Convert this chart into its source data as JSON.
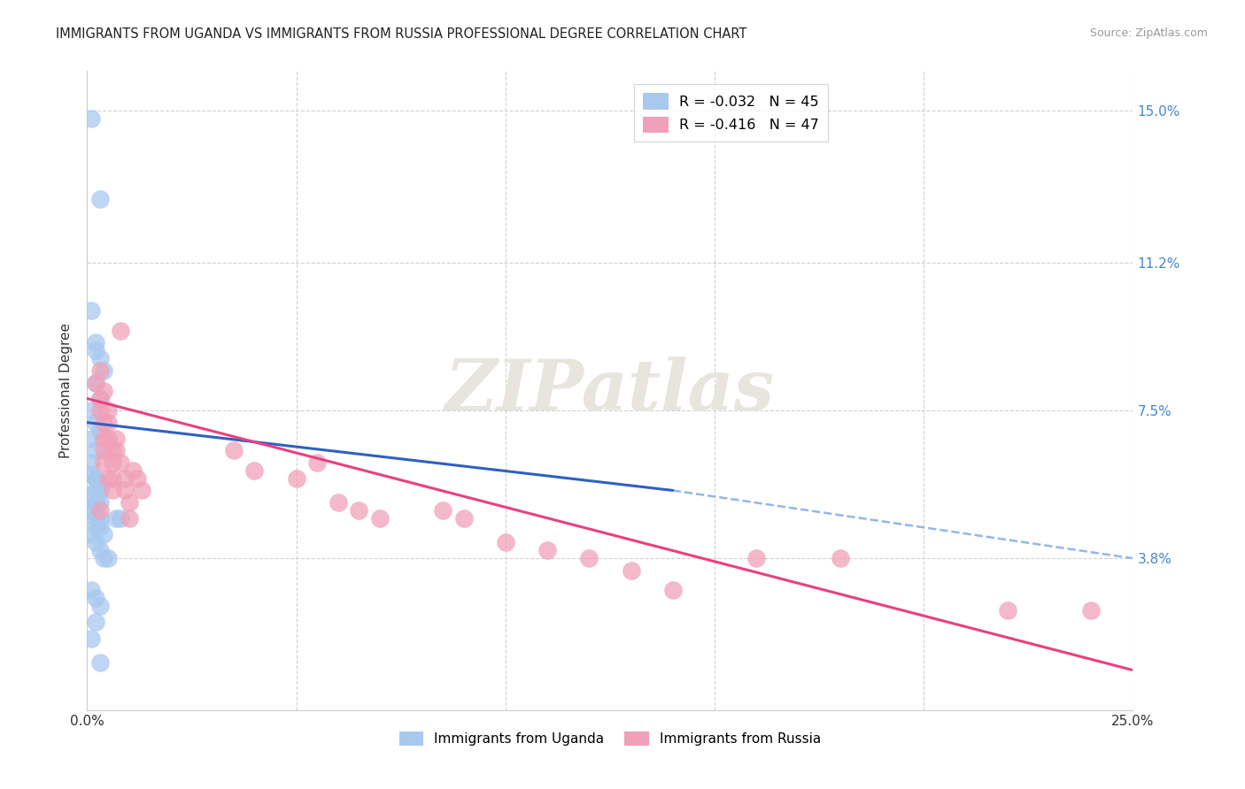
{
  "title": "IMMIGRANTS FROM UGANDA VS IMMIGRANTS FROM RUSSIA PROFESSIONAL DEGREE CORRELATION CHART",
  "source": "Source: ZipAtlas.com",
  "ylabel": "Professional Degree",
  "x_min": 0.0,
  "x_max": 0.25,
  "y_min": 0.0,
  "y_max": 0.16,
  "ytick_values": [
    0.038,
    0.075,
    0.112,
    0.15
  ],
  "xtick_values": [
    0.0,
    0.05,
    0.1,
    0.15,
    0.2,
    0.25
  ],
  "blue_color": "#a8c8f0",
  "pink_color": "#f0a0b8",
  "blue_line_color": "#3060c0",
  "pink_line_color": "#e84080",
  "dashed_line_color": "#90b8e8",
  "background_color": "#ffffff",
  "grid_color": "#cccccc",
  "watermark_text": "ZIPatlas",
  "watermark_color": "#e8e4de",
  "uganda_x": [
    0.001,
    0.003,
    0.001,
    0.002,
    0.002,
    0.003,
    0.004,
    0.002,
    0.003,
    0.001,
    0.002,
    0.003,
    0.001,
    0.002,
    0.001,
    0.001,
    0.002,
    0.003,
    0.002,
    0.001,
    0.003,
    0.002,
    0.001,
    0.002,
    0.003,
    0.004,
    0.002,
    0.003,
    0.001,
    0.002,
    0.003,
    0.004,
    0.002,
    0.003,
    0.001,
    0.002,
    0.001,
    0.002,
    0.003,
    0.002,
    0.001,
    0.003,
    0.007,
    0.005,
    0.008
  ],
  "uganda_y": [
    0.148,
    0.128,
    0.1,
    0.092,
    0.09,
    0.088,
    0.085,
    0.082,
    0.078,
    0.075,
    0.072,
    0.07,
    0.068,
    0.065,
    0.062,
    0.059,
    0.058,
    0.055,
    0.052,
    0.05,
    0.048,
    0.046,
    0.044,
    0.042,
    0.04,
    0.038,
    0.055,
    0.052,
    0.05,
    0.048,
    0.046,
    0.044,
    0.058,
    0.056,
    0.054,
    0.052,
    0.03,
    0.028,
    0.026,
    0.022,
    0.018,
    0.012,
    0.048,
    0.038,
    0.048
  ],
  "russia_x": [
    0.002,
    0.003,
    0.003,
    0.003,
    0.004,
    0.004,
    0.004,
    0.004,
    0.005,
    0.005,
    0.005,
    0.006,
    0.006,
    0.006,
    0.007,
    0.007,
    0.008,
    0.008,
    0.009,
    0.009,
    0.01,
    0.01,
    0.011,
    0.012,
    0.013,
    0.003,
    0.004,
    0.005,
    0.006,
    0.035,
    0.04,
    0.05,
    0.055,
    0.06,
    0.065,
    0.07,
    0.085,
    0.09,
    0.1,
    0.11,
    0.12,
    0.13,
    0.14,
    0.16,
    0.18,
    0.22,
    0.24
  ],
  "russia_y": [
    0.082,
    0.085,
    0.078,
    0.075,
    0.072,
    0.068,
    0.065,
    0.08,
    0.075,
    0.072,
    0.068,
    0.065,
    0.062,
    0.058,
    0.068,
    0.065,
    0.062,
    0.095,
    0.058,
    0.055,
    0.052,
    0.048,
    0.06,
    0.058,
    0.055,
    0.05,
    0.062,
    0.058,
    0.055,
    0.065,
    0.06,
    0.058,
    0.062,
    0.052,
    0.05,
    0.048,
    0.05,
    0.048,
    0.042,
    0.04,
    0.038,
    0.035,
    0.03,
    0.038,
    0.038,
    0.025,
    0.025
  ],
  "uganda_line_x": [
    0.0,
    0.14
  ],
  "uganda_line_y": [
    0.072,
    0.055
  ],
  "russia_line_x": [
    0.0,
    0.25
  ],
  "russia_line_y": [
    0.078,
    0.01
  ],
  "dashed_line_x": [
    0.14,
    0.25
  ],
  "dashed_line_y": [
    0.055,
    0.038
  ]
}
